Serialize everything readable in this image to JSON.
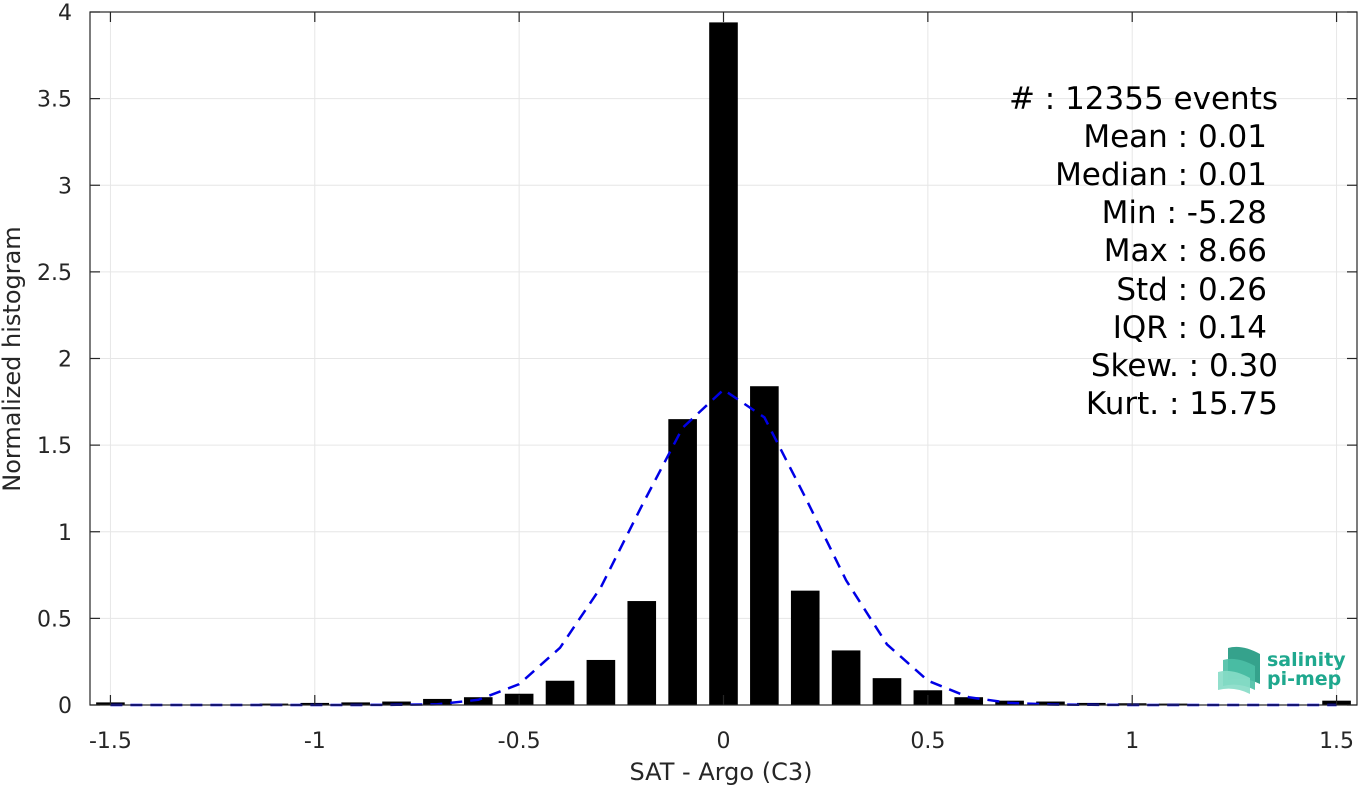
{
  "chart_data": {
    "type": "bar",
    "xlabel": "SAT - Argo (C3)",
    "ylabel": "Normalized histogram",
    "xlim": [
      -1.55,
      1.55
    ],
    "ylim": [
      0,
      4
    ],
    "xticks": [
      -1.5,
      -1,
      -0.5,
      0,
      0.5,
      1,
      1.5
    ],
    "xtick_labels": [
      "-1.5",
      "-1",
      "-0.5",
      "0",
      "0.5",
      "1",
      "1.5"
    ],
    "yticks": [
      0,
      0.5,
      1,
      1.5,
      2,
      2.5,
      3,
      3.5,
      4
    ],
    "ytick_labels": [
      "0",
      "0.5",
      "1",
      "1.5",
      "2",
      "2.5",
      "3",
      "3.5",
      "4"
    ],
    "grid": true,
    "bar_color": "#000000",
    "bar_width": 0.07,
    "bins": [
      {
        "x": -1.5,
        "y": 0.015
      },
      {
        "x": -1.1,
        "y": 0.008
      },
      {
        "x": -1.0,
        "y": 0.012
      },
      {
        "x": -0.9,
        "y": 0.015
      },
      {
        "x": -0.8,
        "y": 0.02
      },
      {
        "x": -0.7,
        "y": 0.035
      },
      {
        "x": -0.6,
        "y": 0.045
      },
      {
        "x": -0.5,
        "y": 0.065
      },
      {
        "x": -0.4,
        "y": 0.14
      },
      {
        "x": -0.3,
        "y": 0.26
      },
      {
        "x": -0.2,
        "y": 0.6
      },
      {
        "x": -0.1,
        "y": 1.65
      },
      {
        "x": 0.0,
        "y": 3.94
      },
      {
        "x": 0.1,
        "y": 1.84
      },
      {
        "x": 0.2,
        "y": 0.66
      },
      {
        "x": 0.3,
        "y": 0.315
      },
      {
        "x": 0.4,
        "y": 0.155
      },
      {
        "x": 0.5,
        "y": 0.085
      },
      {
        "x": 0.6,
        "y": 0.045
      },
      {
        "x": 0.7,
        "y": 0.025
      },
      {
        "x": 0.8,
        "y": 0.02
      },
      {
        "x": 0.9,
        "y": 0.012
      },
      {
        "x": 1.0,
        "y": 0.01
      },
      {
        "x": 1.1,
        "y": 0.008
      },
      {
        "x": 1.5,
        "y": 0.025
      }
    ],
    "fit_curve": {
      "color": "#0000e6",
      "style": "dashed",
      "x": [
        -1.5,
        -1.4,
        -1.3,
        -1.2,
        -1.1,
        -1.0,
        -0.9,
        -0.8,
        -0.7,
        -0.6,
        -0.5,
        -0.4,
        -0.3,
        -0.2,
        -0.1,
        0.0,
        0.1,
        0.2,
        0.3,
        0.4,
        0.5,
        0.6,
        0.7,
        0.8,
        0.9,
        1.0,
        1.1,
        1.2,
        1.3,
        1.4,
        1.5
      ],
      "y": [
        0,
        0,
        0,
        0,
        0,
        0,
        0,
        0.001,
        0.004,
        0.03,
        0.12,
        0.33,
        0.68,
        1.15,
        1.6,
        1.82,
        1.66,
        1.2,
        0.72,
        0.35,
        0.14,
        0.045,
        0.012,
        0.003,
        0.001,
        0,
        0,
        0,
        0,
        0,
        0
      ]
    }
  },
  "stats": [
    {
      "label": "#  : 12355 events"
    },
    {
      "label": "Mean : 0.01"
    },
    {
      "label": "Median : 0.01"
    },
    {
      "label": "Min : -5.28"
    },
    {
      "label": "Max : 8.66"
    },
    {
      "label": "Std : 0.26"
    },
    {
      "label": "IQR : 0.14"
    },
    {
      "label": "Skew. : 0.30"
    },
    {
      "label": "Kurt. : 15.75"
    }
  ],
  "logo": {
    "line1": "salinity",
    "line2": "pi-mep",
    "color": "#1fa88e"
  }
}
